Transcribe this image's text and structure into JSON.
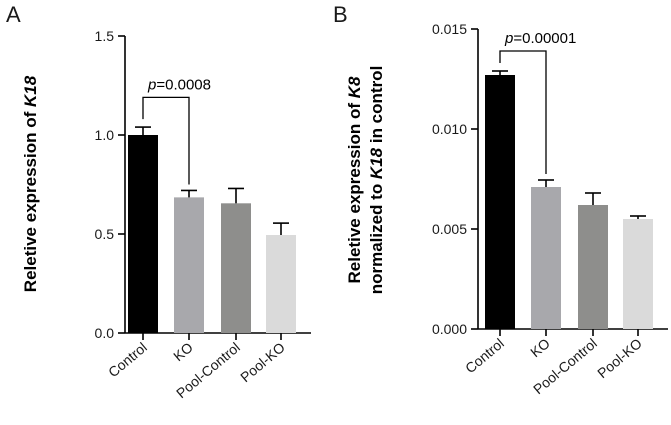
{
  "chart_data": [
    {
      "panel": "A",
      "type": "bar",
      "categories": [
        "Control",
        "KO",
        "Pool-Control",
        "Pool-KO"
      ],
      "values": [
        1.0,
        0.685,
        0.655,
        0.495
      ],
      "errors": [
        0.04,
        0.035,
        0.075,
        0.06
      ],
      "colors": [
        "#000000",
        "#a8a8ac",
        "#8e8e8c",
        "#dadada"
      ],
      "ylabel_parts": [
        {
          "text": "Reletive expression of ",
          "italic": false
        },
        {
          "text": "K18",
          "italic": true
        }
      ],
      "ylim": [
        0,
        1.5
      ],
      "yticks": [
        {
          "value": 0,
          "label": "0.0"
        },
        {
          "value": 0.5,
          "label": "0.5"
        },
        {
          "value": 1.0,
          "label": "1.0"
        },
        {
          "value": 1.5,
          "label": "1.5"
        }
      ],
      "annotation": {
        "p_symbol": "p",
        "text": "=0.0008",
        "from": 0,
        "to": 1,
        "y": 1.19
      },
      "grid": false
    },
    {
      "panel": "B",
      "type": "bar",
      "categories": [
        "Control",
        "KO",
        "Pool-Control",
        "Pool-KO"
      ],
      "values": [
        0.0127,
        0.0071,
        0.0062,
        0.0055
      ],
      "errors": [
        0.0002,
        0.00035,
        0.0006,
        0.00015
      ],
      "colors": [
        "#000000",
        "#a8a8ac",
        "#8e8e8c",
        "#dadada"
      ],
      "ylabel_line1_parts": [
        {
          "text": "Reletive expression of ",
          "italic": false
        },
        {
          "text": "K8",
          "italic": true
        }
      ],
      "ylabel_line2_parts": [
        {
          "text": "normalized to ",
          "italic": false
        },
        {
          "text": "K18",
          "italic": true
        },
        {
          "text": " in control",
          "italic": false
        }
      ],
      "ylim": [
        0,
        0.015
      ],
      "yticks": [
        {
          "value": 0,
          "label": "0.000"
        },
        {
          "value": 0.005,
          "label": "0.005"
        },
        {
          "value": 0.01,
          "label": "0.010"
        },
        {
          "value": 0.015,
          "label": "0.015"
        }
      ],
      "annotation": {
        "p_symbol": "p",
        "text": "=0.00001",
        "from": 0,
        "to": 1,
        "y": 0.0139
      },
      "grid": false
    }
  ]
}
